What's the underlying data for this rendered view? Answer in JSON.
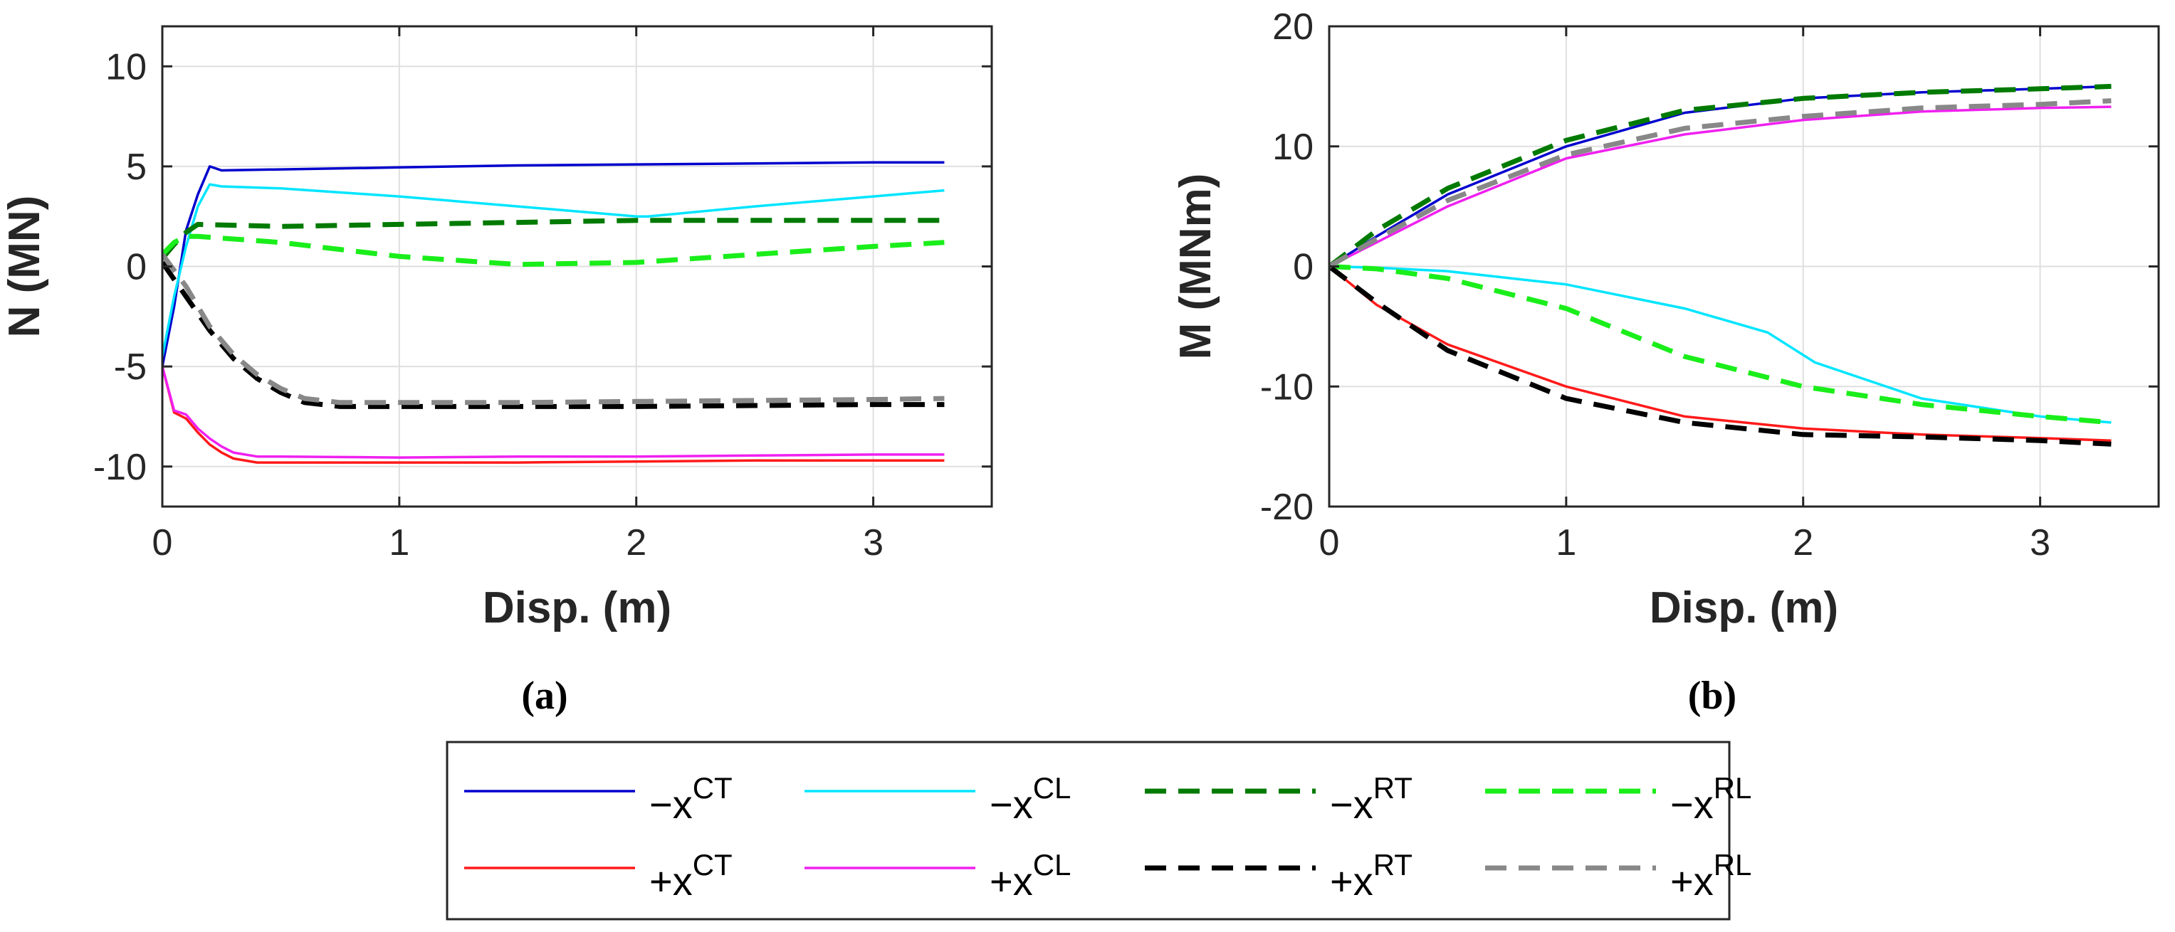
{
  "panel_labels": [
    "(a)",
    "(b)"
  ],
  "chart_data": [
    {
      "type": "line",
      "panel": "(a)",
      "xlabel": "Disp. (m)",
      "ylabel": "N (MN)",
      "xlim": [
        0,
        3.5
      ],
      "ylim": [
        -12,
        12
      ],
      "xticks": [
        0,
        1,
        2,
        3
      ],
      "yticks": [
        -10,
        -5,
        0,
        5,
        10
      ],
      "grid": true,
      "series": [
        {
          "key": "mCT",
          "x": [
            0,
            0.05,
            0.1,
            0.15,
            0.2,
            0.25,
            0.5,
            1,
            1.5,
            2,
            2.5,
            3,
            3.3
          ],
          "y": [
            -5,
            -2,
            1.8,
            3.6,
            5.0,
            4.8,
            4.85,
            4.95,
            5.05,
            5.1,
            5.15,
            5.2,
            5.2
          ]
        },
        {
          "key": "mCL",
          "x": [
            0,
            0.05,
            0.1,
            0.15,
            0.2,
            0.25,
            0.5,
            1,
            1.5,
            2,
            2.05,
            2.5,
            3,
            3.3
          ],
          "y": [
            -4.5,
            -1.5,
            1.0,
            3.0,
            4.1,
            4.0,
            3.9,
            3.5,
            3.0,
            2.5,
            2.5,
            3.0,
            3.5,
            3.8
          ]
        },
        {
          "key": "mRT",
          "x": [
            0,
            0.05,
            0.1,
            0.15,
            0.5,
            1,
            1.5,
            2,
            2.5,
            3,
            3.3
          ],
          "y": [
            0.4,
            1.1,
            1.7,
            2.1,
            2.0,
            2.1,
            2.2,
            2.3,
            2.3,
            2.3,
            2.3
          ]
        },
        {
          "key": "mRL",
          "x": [
            0,
            0.05,
            0.1,
            0.15,
            0.5,
            1,
            1.5,
            2,
            2.5,
            3,
            3.3
          ],
          "y": [
            0.6,
            1.2,
            1.5,
            1.5,
            1.2,
            0.5,
            0.1,
            0.2,
            0.6,
            1.0,
            1.2
          ]
        },
        {
          "key": "pCT",
          "x": [
            0,
            0.05,
            0.1,
            0.15,
            0.2,
            0.25,
            0.3,
            0.4,
            0.5,
            1,
            1.5,
            2,
            2.5,
            3,
            3.3
          ],
          "y": [
            -5,
            -7.3,
            -7.6,
            -8.3,
            -8.9,
            -9.3,
            -9.6,
            -9.8,
            -9.8,
            -9.8,
            -9.8,
            -9.75,
            -9.7,
            -9.7,
            -9.7
          ]
        },
        {
          "key": "pCL",
          "x": [
            0,
            0.05,
            0.1,
            0.15,
            0.2,
            0.25,
            0.3,
            0.4,
            0.5,
            1,
            1.5,
            2,
            2.5,
            3,
            3.3
          ],
          "y": [
            -5,
            -7.2,
            -7.4,
            -8.1,
            -8.6,
            -9.0,
            -9.3,
            -9.5,
            -9.5,
            -9.55,
            -9.5,
            -9.5,
            -9.45,
            -9.4,
            -9.4
          ]
        },
        {
          "key": "pRT",
          "x": [
            0,
            0.1,
            0.2,
            0.3,
            0.4,
            0.5,
            0.6,
            0.75,
            1,
            1.5,
            2,
            2.5,
            3,
            3.3
          ],
          "y": [
            0.2,
            -1.5,
            -3.2,
            -4.6,
            -5.6,
            -6.3,
            -6.8,
            -7.0,
            -7.0,
            -7.0,
            -7.0,
            -6.95,
            -6.9,
            -6.9
          ]
        },
        {
          "key": "pRL",
          "x": [
            0,
            0.1,
            0.2,
            0.3,
            0.4,
            0.5,
            0.6,
            0.75,
            1,
            1.5,
            2,
            2.5,
            3,
            3.3
          ],
          "y": [
            0.6,
            -1.0,
            -3.0,
            -4.4,
            -5.4,
            -6.1,
            -6.6,
            -6.8,
            -6.8,
            -6.8,
            -6.75,
            -6.7,
            -6.65,
            -6.6
          ]
        }
      ]
    },
    {
      "type": "line",
      "panel": "(b)",
      "xlabel": "Disp. (m)",
      "ylabel": "M (MNm)",
      "xlim": [
        0,
        3.5
      ],
      "ylim": [
        -20,
        20
      ],
      "xticks": [
        0,
        1,
        2,
        3
      ],
      "yticks": [
        -20,
        -10,
        0,
        10,
        20
      ],
      "grid": true,
      "series": [
        {
          "key": "mCT",
          "x": [
            0,
            0.2,
            0.5,
            1,
            1.5,
            2,
            2.5,
            3,
            3.3
          ],
          "y": [
            0,
            2.5,
            6,
            10,
            12.8,
            14,
            14.5,
            14.8,
            15
          ]
        },
        {
          "key": "mCL",
          "x": [
            0,
            0.2,
            0.5,
            1,
            1.5,
            1.85,
            2.05,
            2.5,
            3,
            3.3
          ],
          "y": [
            0,
            -0.1,
            -0.4,
            -1.5,
            -3.5,
            -5.5,
            -8,
            -11,
            -12.5,
            -13
          ]
        },
        {
          "key": "mRT",
          "x": [
            0,
            0.2,
            0.5,
            1,
            1.5,
            2,
            2.5,
            3,
            3.3
          ],
          "y": [
            0,
            3.0,
            6.5,
            10.5,
            13.0,
            14.0,
            14.5,
            14.8,
            15
          ]
        },
        {
          "key": "mRL",
          "x": [
            0,
            0.2,
            0.5,
            1,
            1.5,
            2,
            2.5,
            3,
            3.3
          ],
          "y": [
            0,
            -0.2,
            -1.0,
            -3.5,
            -7.5,
            -10,
            -11.5,
            -12.5,
            -13
          ]
        },
        {
          "key": "pCT",
          "x": [
            0,
            0.2,
            0.5,
            1,
            1.5,
            2,
            2.5,
            3,
            3.3
          ],
          "y": [
            0,
            -3.2,
            -6.5,
            -10,
            -12.5,
            -13.5,
            -14,
            -14.3,
            -14.5
          ]
        },
        {
          "key": "pCL",
          "x": [
            0,
            0.2,
            0.5,
            1,
            1.5,
            2,
            2.5,
            3,
            3.3
          ],
          "y": [
            0,
            2.0,
            5.0,
            9.0,
            11.0,
            12.2,
            12.9,
            13.2,
            13.3
          ]
        },
        {
          "key": "pRT",
          "x": [
            0,
            0.2,
            0.5,
            1,
            1.5,
            2,
            2.5,
            3,
            3.3
          ],
          "y": [
            0,
            -3.0,
            -7.0,
            -11,
            -13,
            -14,
            -14.2,
            -14.5,
            -14.8
          ]
        },
        {
          "key": "pRL",
          "x": [
            0,
            0.2,
            0.5,
            1,
            1.5,
            2,
            2.5,
            3,
            3.3
          ],
          "y": [
            0,
            2.3,
            5.5,
            9.3,
            11.5,
            12.5,
            13.2,
            13.5,
            13.8
          ]
        }
      ]
    }
  ],
  "legend": {
    "placement": "bottom-center",
    "entries": [
      {
        "key": "mCT",
        "sign": "−x",
        "sup": "CT",
        "color": "#0000cd",
        "dashed": false
      },
      {
        "key": "mCL",
        "sign": "−x",
        "sup": "CL",
        "color": "#00e5ff",
        "dashed": false
      },
      {
        "key": "mRT",
        "sign": "−x",
        "sup": "RT",
        "color": "#007a00",
        "dashed": true
      },
      {
        "key": "mRL",
        "sign": "−x",
        "sup": "RL",
        "color": "#1aee1a",
        "dashed": true
      },
      {
        "key": "pCT",
        "sign": "+x",
        "sup": "CT",
        "color": "#ff1a1a",
        "dashed": false
      },
      {
        "key": "pCL",
        "sign": "+x",
        "sup": "CL",
        "color": "#f020f0",
        "dashed": false
      },
      {
        "key": "pRT",
        "sign": "+x",
        "sup": "RT",
        "color": "#000000",
        "dashed": true
      },
      {
        "key": "pRL",
        "sign": "+x",
        "sup": "RL",
        "color": "#888888",
        "dashed": true
      }
    ]
  }
}
